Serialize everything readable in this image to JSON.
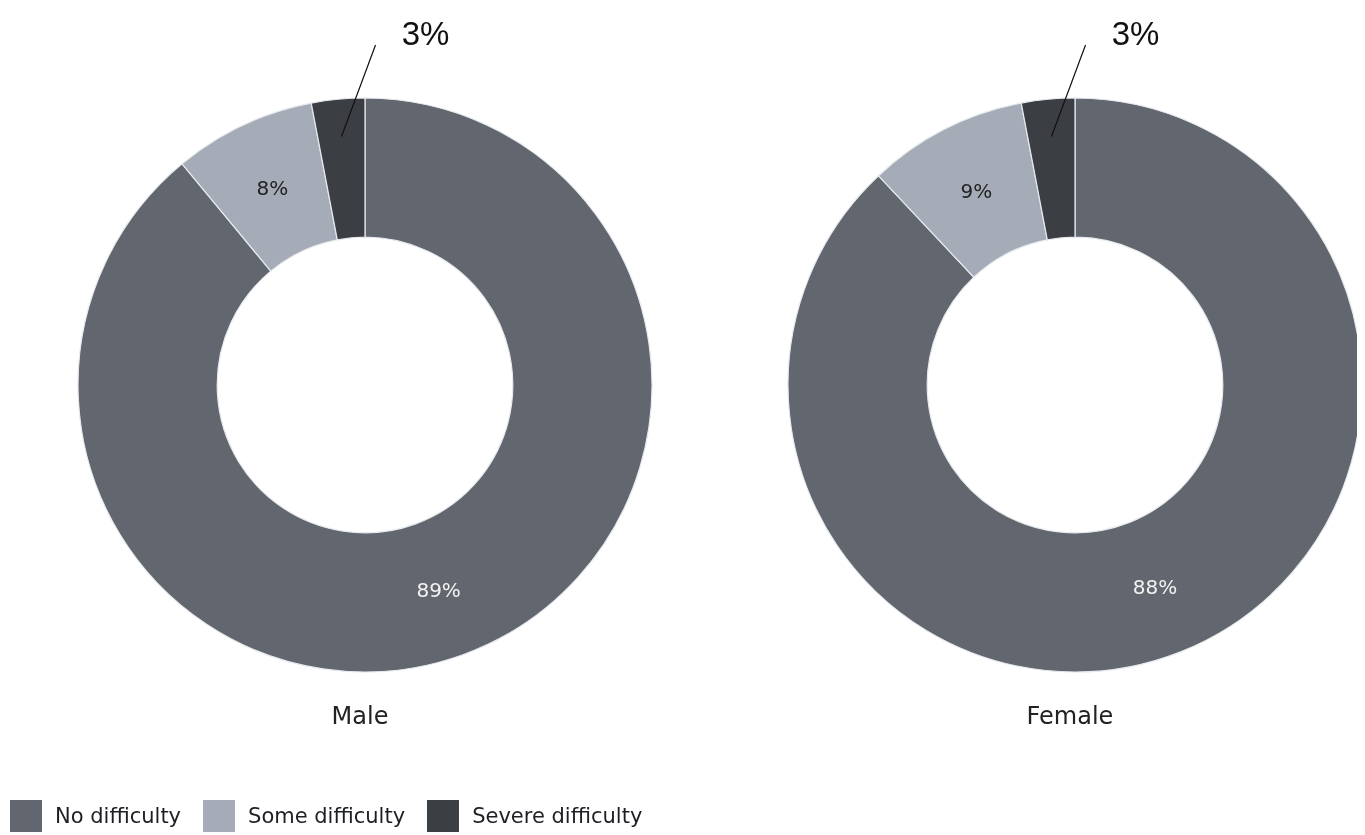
{
  "chart_data": [
    {
      "type": "donut",
      "title": "Male",
      "categories": [
        "No difficulty",
        "Some difficulty",
        "Severe difficulty"
      ],
      "values": [
        89,
        8,
        3
      ],
      "colors": [
        "#62666e",
        "#a5acb7",
        "#3b3e43"
      ],
      "value_labels": [
        "89%",
        "8%",
        "3%"
      ],
      "legend": "bottom"
    },
    {
      "type": "donut",
      "title": "Female",
      "categories": [
        null,
        null,
        null
      ],
      "values": [
        88,
        9,
        3
      ],
      "colors": [
        "#62666e",
        "#a5acb7",
        "#3b3e43"
      ],
      "value_labels": [
        "88%",
        "9%",
        "3%"
      ]
    }
  ]
}
